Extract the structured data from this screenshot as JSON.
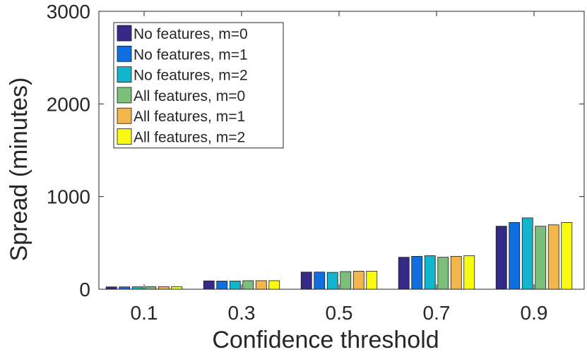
{
  "chart_data": {
    "type": "bar",
    "title": "",
    "xlabel": "Confidence threshold",
    "ylabel": "Spread (minutes)",
    "categories": [
      "0.1",
      "0.3",
      "0.5",
      "0.7",
      "0.9"
    ],
    "ylim": [
      0,
      3000
    ],
    "yticks": [
      "0",
      "1000",
      "2000",
      "3000"
    ],
    "grid": false,
    "legend_position": "top-left",
    "series": [
      {
        "name": "No features, m=0",
        "color": "#352a87",
        "values": [
          25,
          90,
          185,
          345,
          680
        ]
      },
      {
        "name": "No features, m=1",
        "color": "#0f6fde",
        "values": [
          25,
          88,
          185,
          355,
          720
        ]
      },
      {
        "name": "No features, m=2",
        "color": "#12b4ce",
        "values": [
          26,
          88,
          182,
          362,
          770
        ]
      },
      {
        "name": "All features, m=0",
        "color": "#7cbf7b",
        "values": [
          28,
          92,
          190,
          345,
          680
        ]
      },
      {
        "name": "All features, m=1",
        "color": "#f2b64c",
        "values": [
          28,
          92,
          195,
          355,
          695
        ]
      },
      {
        "name": "All features, m=2",
        "color": "#f9fb0e",
        "values": [
          28,
          92,
          195,
          362,
          720
        ]
      }
    ]
  }
}
